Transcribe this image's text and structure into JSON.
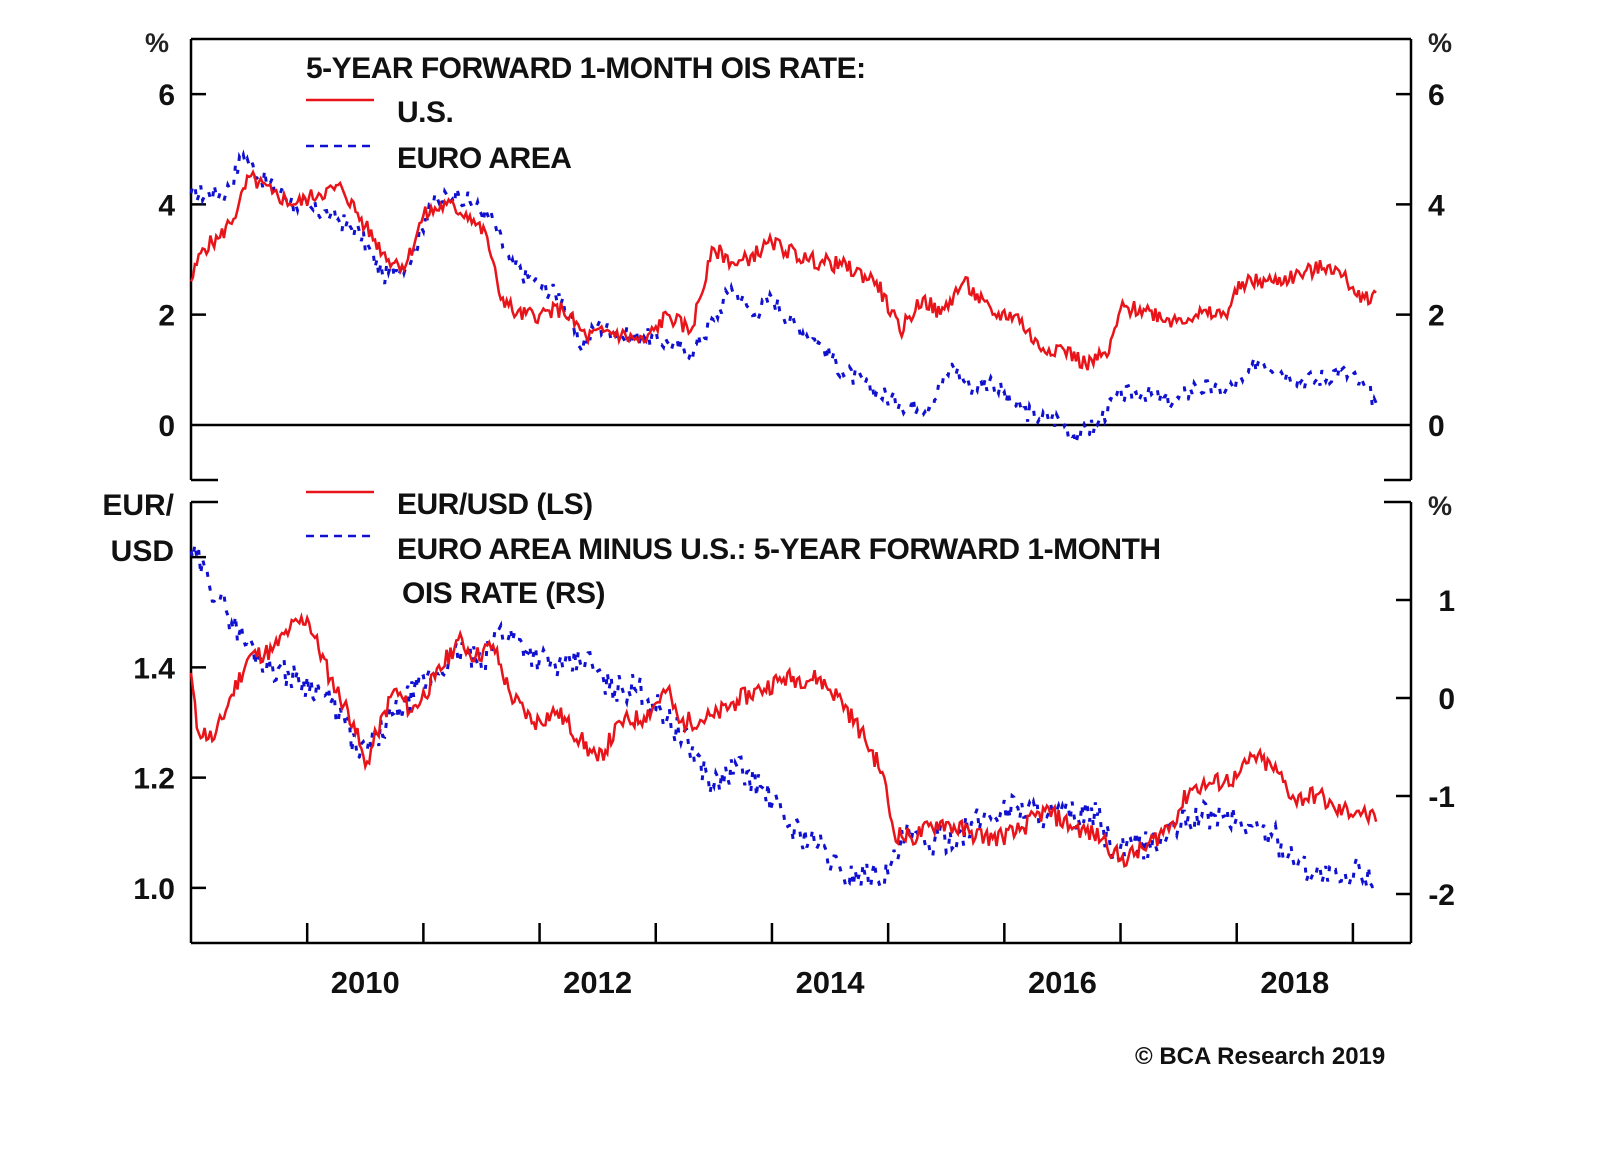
{
  "chart_data": [
    {
      "type": "line",
      "panel": "top",
      "title": "5-YEAR FORWARD 1-MONTH OIS RATE:",
      "ylabel_left": "%",
      "ylabel_right": "%",
      "ylim": [
        -1,
        7
      ],
      "yticks": [
        0,
        2,
        4,
        6
      ],
      "ytick_labels": [
        "0",
        "2",
        "4",
        "6"
      ],
      "zero_line": true,
      "legend_position": "top-left",
      "series": [
        {
          "name": "U.S.",
          "color": "#e8141a",
          "style": "solid",
          "points": [
            [
              2009.0,
              2.6
            ],
            [
              2009.1,
              3.2
            ],
            [
              2009.25,
              3.4
            ],
            [
              2009.4,
              3.9
            ],
            [
              2009.5,
              4.5
            ],
            [
              2009.7,
              4.2
            ],
            [
              2009.9,
              4.0
            ],
            [
              2010.1,
              4.2
            ],
            [
              2010.3,
              4.3
            ],
            [
              2010.5,
              3.6
            ],
            [
              2010.7,
              3.0
            ],
            [
              2010.85,
              2.9
            ],
            [
              2011.0,
              3.8
            ],
            [
              2011.2,
              4.0
            ],
            [
              2011.4,
              3.8
            ],
            [
              2011.55,
              3.4
            ],
            [
              2011.65,
              2.4
            ],
            [
              2011.8,
              2.0
            ],
            [
              2012.0,
              2.0
            ],
            [
              2012.2,
              2.1
            ],
            [
              2012.4,
              1.6
            ],
            [
              2012.6,
              1.7
            ],
            [
              2012.9,
              1.5
            ],
            [
              2013.1,
              2.0
            ],
            [
              2013.3,
              1.7
            ],
            [
              2013.5,
              3.2
            ],
            [
              2013.7,
              2.9
            ],
            [
              2014.0,
              3.3
            ],
            [
              2014.3,
              3.0
            ],
            [
              2014.6,
              2.9
            ],
            [
              2014.9,
              2.6
            ],
            [
              2015.1,
              1.7
            ],
            [
              2015.3,
              2.3
            ],
            [
              2015.45,
              2.0
            ],
            [
              2015.65,
              2.6
            ],
            [
              2015.9,
              2.0
            ],
            [
              2016.1,
              2.0
            ],
            [
              2016.3,
              1.4
            ],
            [
              2016.5,
              1.4
            ],
            [
              2016.7,
              1.1
            ],
            [
              2016.9,
              1.3
            ],
            [
              2017.0,
              2.1
            ],
            [
              2017.2,
              2.1
            ],
            [
              2017.45,
              1.9
            ],
            [
              2017.65,
              2.0
            ],
            [
              2017.9,
              2.0
            ],
            [
              2018.05,
              2.6
            ],
            [
              2018.3,
              2.6
            ],
            [
              2018.5,
              2.7
            ],
            [
              2018.8,
              2.9
            ],
            [
              2018.95,
              2.6
            ],
            [
              2019.1,
              2.3
            ],
            [
              2019.2,
              2.4
            ]
          ]
        },
        {
          "name": "EURO AREA",
          "color": "#1010d0",
          "style": "dashed",
          "points": [
            [
              2009.0,
              4.2
            ],
            [
              2009.3,
              4.2
            ],
            [
              2009.45,
              4.9
            ],
            [
              2009.6,
              4.5
            ],
            [
              2009.9,
              4.0
            ],
            [
              2010.2,
              3.8
            ],
            [
              2010.45,
              3.5
            ],
            [
              2010.65,
              2.7
            ],
            [
              2010.9,
              3.0
            ],
            [
              2011.05,
              4.0
            ],
            [
              2011.3,
              4.2
            ],
            [
              2011.6,
              3.7
            ],
            [
              2011.75,
              2.9
            ],
            [
              2011.95,
              2.6
            ],
            [
              2012.2,
              2.3
            ],
            [
              2012.35,
              1.4
            ],
            [
              2012.5,
              1.8
            ],
            [
              2012.7,
              1.6
            ],
            [
              2012.9,
              1.6
            ],
            [
              2013.1,
              1.5
            ],
            [
              2013.3,
              1.3
            ],
            [
              2013.5,
              1.9
            ],
            [
              2013.65,
              2.5
            ],
            [
              2013.85,
              2.0
            ],
            [
              2014.0,
              2.3
            ],
            [
              2014.2,
              1.8
            ],
            [
              2014.4,
              1.5
            ],
            [
              2014.6,
              1.0
            ],
            [
              2014.9,
              0.6
            ],
            [
              2015.1,
              0.4
            ],
            [
              2015.35,
              0.3
            ],
            [
              2015.55,
              1.1
            ],
            [
              2015.7,
              0.7
            ],
            [
              2015.9,
              0.8
            ],
            [
              2016.05,
              0.4
            ],
            [
              2016.3,
              0.1
            ],
            [
              2016.5,
              0.1
            ],
            [
              2016.6,
              -0.2
            ],
            [
              2016.8,
              0.0
            ],
            [
              2016.95,
              0.5
            ],
            [
              2017.2,
              0.6
            ],
            [
              2017.45,
              0.4
            ],
            [
              2017.65,
              0.7
            ],
            [
              2017.9,
              0.6
            ],
            [
              2018.05,
              0.8
            ],
            [
              2018.2,
              1.2
            ],
            [
              2018.45,
              0.9
            ],
            [
              2018.65,
              0.8
            ],
            [
              2018.9,
              1.0
            ],
            [
              2019.1,
              0.7
            ],
            [
              2019.2,
              0.4
            ]
          ]
        }
      ]
    },
    {
      "type": "line",
      "panel": "bottom",
      "ylabel_left": "EUR/\nUSD",
      "ylabel_left_lines": [
        "EUR/",
        "USD"
      ],
      "ylabel_right": "%",
      "ylim_left": [
        0.9,
        1.7
      ],
      "yticks_left": [
        1.0,
        1.2,
        1.4,
        1.6
      ],
      "ytick_labels_left": [
        "1.0",
        "1.2",
        "1.4",
        ""
      ],
      "ylim_right": [
        -2.5,
        2.0
      ],
      "yticks_right": [
        -2,
        -1,
        0,
        1,
        2
      ],
      "ytick_labels_right": [
        "-2",
        "-1",
        "0",
        "1",
        ""
      ],
      "legend_position": "top-left",
      "series": [
        {
          "name": "EUR/USD (LS)",
          "axis": "left",
          "color": "#e8141a",
          "style": "solid",
          "points": [
            [
              2009.0,
              1.39
            ],
            [
              2009.05,
              1.29
            ],
            [
              2009.2,
              1.27
            ],
            [
              2009.35,
              1.35
            ],
            [
              2009.5,
              1.42
            ],
            [
              2009.7,
              1.43
            ],
            [
              2009.85,
              1.47
            ],
            [
              2010.0,
              1.49
            ],
            [
              2010.2,
              1.38
            ],
            [
              2010.4,
              1.3
            ],
            [
              2010.5,
              1.22
            ],
            [
              2010.6,
              1.28
            ],
            [
              2010.75,
              1.36
            ],
            [
              2010.9,
              1.32
            ],
            [
              2011.1,
              1.38
            ],
            [
              2011.3,
              1.45
            ],
            [
              2011.45,
              1.42
            ],
            [
              2011.6,
              1.44
            ],
            [
              2011.75,
              1.35
            ],
            [
              2011.95,
              1.3
            ],
            [
              2012.15,
              1.32
            ],
            [
              2012.35,
              1.27
            ],
            [
              2012.5,
              1.23
            ],
            [
              2012.7,
              1.3
            ],
            [
              2012.9,
              1.31
            ],
            [
              2013.1,
              1.36
            ],
            [
              2013.2,
              1.3
            ],
            [
              2013.5,
              1.31
            ],
            [
              2013.7,
              1.34
            ],
            [
              2013.9,
              1.36
            ],
            [
              2014.1,
              1.38
            ],
            [
              2014.4,
              1.38
            ],
            [
              2014.6,
              1.34
            ],
            [
              2014.8,
              1.27
            ],
            [
              2014.95,
              1.21
            ],
            [
              2015.05,
              1.1
            ],
            [
              2015.2,
              1.09
            ],
            [
              2015.45,
              1.12
            ],
            [
              2015.7,
              1.1
            ],
            [
              2015.9,
              1.09
            ],
            [
              2016.1,
              1.1
            ],
            [
              2016.35,
              1.14
            ],
            [
              2016.6,
              1.11
            ],
            [
              2016.85,
              1.09
            ],
            [
              2017.0,
              1.05
            ],
            [
              2017.2,
              1.07
            ],
            [
              2017.45,
              1.12
            ],
            [
              2017.6,
              1.18
            ],
            [
              2017.8,
              1.19
            ],
            [
              2018.0,
              1.2
            ],
            [
              2018.15,
              1.24
            ],
            [
              2018.35,
              1.21
            ],
            [
              2018.5,
              1.16
            ],
            [
              2018.7,
              1.17
            ],
            [
              2018.85,
              1.14
            ],
            [
              2019.05,
              1.14
            ],
            [
              2019.2,
              1.12
            ]
          ]
        },
        {
          "name": "EURO AREA MINUS U.S.: 5-YEAR FORWARD 1-MONTH OIS RATE (RS)",
          "legend_lines": [
            "EURO AREA MINUS U.S.: 5-YEAR FORWARD 1-MONTH",
            "OIS RATE (RS)"
          ],
          "axis": "right",
          "color": "#1010d0",
          "style": "dashed",
          "points": [
            [
              2009.0,
              1.5
            ],
            [
              2009.15,
              1.2
            ],
            [
              2009.3,
              0.9
            ],
            [
              2009.45,
              0.6
            ],
            [
              2009.6,
              0.4
            ],
            [
              2009.75,
              0.3
            ],
            [
              2009.9,
              0.2
            ],
            [
              2010.1,
              0.1
            ],
            [
              2010.3,
              -0.2
            ],
            [
              2010.45,
              -0.6
            ],
            [
              2010.6,
              -0.4
            ],
            [
              2010.8,
              -0.1
            ],
            [
              2010.95,
              0.1
            ],
            [
              2011.15,
              0.3
            ],
            [
              2011.35,
              0.5
            ],
            [
              2011.5,
              0.3
            ],
            [
              2011.65,
              0.7
            ],
            [
              2011.8,
              0.6
            ],
            [
              2012.0,
              0.4
            ],
            [
              2012.2,
              0.3
            ],
            [
              2012.4,
              0.4
            ],
            [
              2012.6,
              0.1
            ],
            [
              2012.85,
              0.1
            ],
            [
              2013.1,
              -0.2
            ],
            [
              2013.35,
              -0.6
            ],
            [
              2013.5,
              -0.9
            ],
            [
              2013.7,
              -0.7
            ],
            [
              2013.9,
              -0.9
            ],
            [
              2014.15,
              -1.3
            ],
            [
              2014.4,
              -1.5
            ],
            [
              2014.6,
              -1.8
            ],
            [
              2014.8,
              -1.8
            ],
            [
              2015.0,
              -1.8
            ],
            [
              2015.15,
              -1.4
            ],
            [
              2015.35,
              -1.5
            ],
            [
              2015.6,
              -1.4
            ],
            [
              2015.85,
              -1.2
            ],
            [
              2016.1,
              -1.1
            ],
            [
              2016.35,
              -1.2
            ],
            [
              2016.6,
              -1.2
            ],
            [
              2016.8,
              -1.2
            ],
            [
              2016.95,
              -1.6
            ],
            [
              2017.1,
              -1.5
            ],
            [
              2017.3,
              -1.5
            ],
            [
              2017.5,
              -1.3
            ],
            [
              2017.7,
              -1.2
            ],
            [
              2017.9,
              -1.2
            ],
            [
              2018.1,
              -1.3
            ],
            [
              2018.3,
              -1.4
            ],
            [
              2018.55,
              -1.7
            ],
            [
              2018.75,
              -1.8
            ],
            [
              2018.95,
              -1.9
            ],
            [
              2019.05,
              -1.7
            ],
            [
              2019.2,
              -1.9
            ]
          ]
        }
      ]
    }
  ],
  "x_axis": {
    "xlim": [
      2009.0,
      2019.5
    ],
    "year_ticks": [
      2010,
      2011,
      2012,
      2013,
      2014,
      2015,
      2016,
      2017,
      2018,
      2019
    ],
    "labels": [
      "2010",
      "2012",
      "2014",
      "2016",
      "2018"
    ],
    "label_years": [
      2010,
      2012,
      2014,
      2016,
      2018
    ]
  },
  "legend_top": {
    "title": "5-YEAR FORWARD 1-MONTH OIS RATE:",
    "items": [
      "U.S.",
      "EURO AREA"
    ]
  },
  "legend_bottom": {
    "items": [
      "EUR/USD (LS)",
      "EURO AREA MINUS U.S.: 5-YEAR FORWARD 1-MONTH",
      "OIS RATE (RS)"
    ]
  },
  "axis_units": {
    "top_left": "%",
    "top_right": "%",
    "bottom_left_1": "EUR/",
    "bottom_left_2": "USD",
    "bottom_right": "%"
  },
  "copyright": "© BCA Research 2019"
}
